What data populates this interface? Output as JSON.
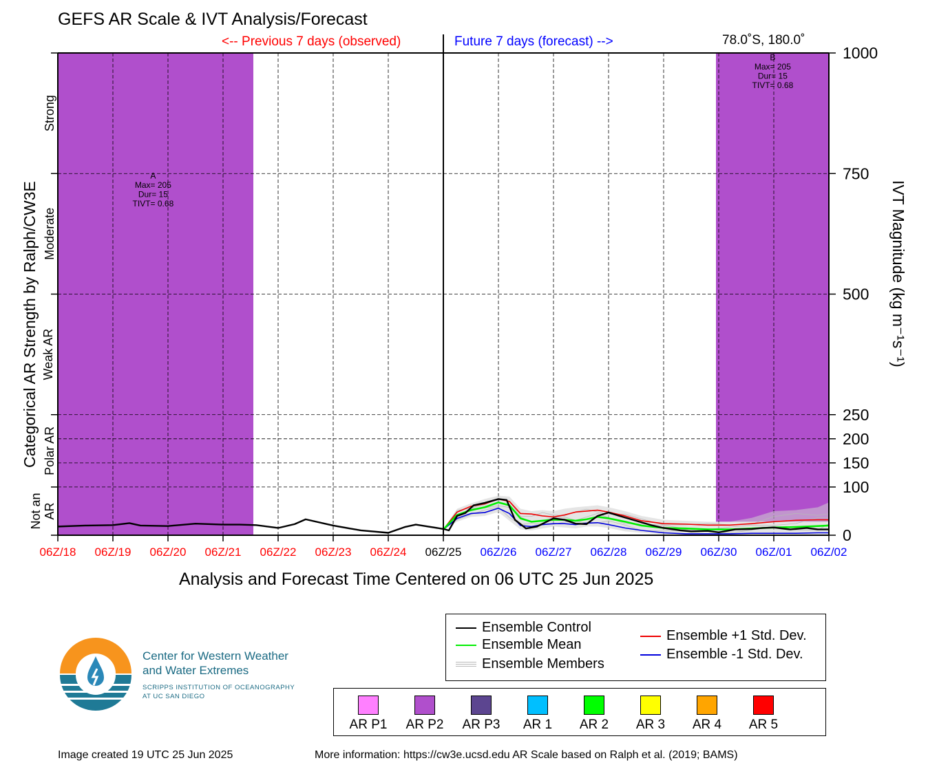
{
  "header": {
    "title": "GEFS AR Scale & IVT Analysis/Forecast",
    "previous_label": "<-- Previous 7 days (observed)",
    "future_label": "Future 7 days (forecast) -->",
    "location": "78.0˚S, 180.0˚"
  },
  "colors": {
    "observed_text": "#ff0000",
    "forecast_text": "#0000ff",
    "ar_p2_shading": "#b04fcc",
    "control": "#000000",
    "mean": "#00ee00",
    "plus_std": "#ee0000",
    "minus_std": "#0000dd",
    "members": "#b8b8b8"
  },
  "chart_data": {
    "type": "line",
    "xlabel": "Analysis and Forecast Time Centered on 06 UTC 25 Jun 2025",
    "ylabel_left": "Categorical AR Strength by Ralph/CW3E",
    "ylabel_right": "IVT Magnitude (kg m⁻¹s⁻¹)",
    "x_ticks": [
      "06Z/18",
      "06Z/19",
      "06Z/20",
      "06Z/21",
      "06Z/22",
      "06Z/23",
      "06Z/24",
      "06Z/25",
      "06Z/26",
      "06Z/27",
      "06Z/28",
      "06Z/29",
      "06Z/30",
      "06Z/01",
      "06Z/02"
    ],
    "x_tick_colors": [
      "#ff0000",
      "#ff0000",
      "#ff0000",
      "#ff0000",
      "#ff0000",
      "#ff0000",
      "#ff0000",
      "#000000",
      "#0000ff",
      "#0000ff",
      "#0000ff",
      "#0000ff",
      "#0000ff",
      "#0000ff",
      "#0000ff"
    ],
    "xlim_days": [
      0,
      14
    ],
    "y_ticks": [
      0,
      100,
      150,
      200,
      250,
      500,
      750,
      1000
    ],
    "ylim": [
      0,
      1000
    ],
    "categories_left": [
      {
        "label": "Not an AR",
        "range": [
          0,
          100
        ]
      },
      {
        "label": "Polar AR",
        "range": [
          100,
          250
        ]
      },
      {
        "label": "Weak AR",
        "range": [
          250,
          500
        ]
      },
      {
        "label": "Moderate",
        "range": [
          500,
          750
        ]
      },
      {
        "label": "Strong",
        "range": [
          750,
          1000
        ]
      }
    ],
    "ar_events": [
      {
        "label": "A",
        "max": "Max= 205",
        "dur": "Dur= 15",
        "tivt": "TIVT= 0.68",
        "x_start": 0.0,
        "x_end": 3.55,
        "label_x": 1.73,
        "label_y": 740
      },
      {
        "label": "B",
        "max": "Max= 205",
        "dur": "Dur= 15",
        "tivt": "TIVT= 0.68",
        "x_start": 11.95,
        "x_end": 14.0,
        "label_x": 12.98,
        "label_y": 985,
        "y_bottom": 28
      }
    ],
    "grid": true,
    "series": [
      {
        "name": "Ensemble Control",
        "x": [
          0,
          0.5,
          1,
          1.3,
          1.5,
          2,
          2.5,
          3,
          3.3,
          3.6,
          4,
          4.3,
          4.5,
          5,
          5.5,
          6,
          6.3,
          6.5,
          7,
          7.1,
          7.25,
          7.4,
          7.55,
          7.75,
          8,
          8.15,
          8.3,
          8.5,
          8.7,
          9,
          9.2,
          9.4,
          9.6,
          9.8,
          10,
          10.2,
          10.5,
          10.8,
          11,
          11.3,
          11.5,
          11.8,
          12,
          12.3,
          12.6,
          12.8,
          13,
          13.3,
          13.6,
          13.8,
          14
        ],
        "values": [
          18,
          20,
          21,
          25,
          20,
          19,
          24,
          22,
          22,
          21,
          15,
          23,
          33,
          20,
          10,
          5,
          17,
          22,
          13,
          10,
          40,
          46,
          62,
          67,
          75,
          73,
          32,
          14,
          18,
          35,
          32,
          24,
          23,
          40,
          47,
          40,
          30,
          20,
          15,
          10,
          8,
          9,
          6,
          12,
          13,
          15,
          16,
          12,
          15,
          12,
          12
        ]
      },
      {
        "name": "Ensemble Mean",
        "x": [
          7,
          7.25,
          7.5,
          7.75,
          8,
          8.2,
          8.4,
          8.6,
          8.8,
          9,
          9.2,
          9.4,
          9.6,
          9.8,
          10,
          10.3,
          10.6,
          11,
          11.4,
          11.8,
          12.2,
          12.6,
          13,
          13.4,
          13.8,
          14
        ],
        "values": [
          12,
          42,
          52,
          58,
          68,
          62,
          35,
          28,
          30,
          32,
          32,
          30,
          33,
          38,
          35,
          28,
          20,
          15,
          14,
          12,
          12,
          14,
          16,
          17,
          19,
          20
        ]
      },
      {
        "name": "Ensemble +1 Std. Dev.",
        "x": [
          7,
          7.25,
          7.5,
          7.75,
          8,
          8.2,
          8.4,
          8.6,
          8.8,
          9,
          9.2,
          9.4,
          9.6,
          9.8,
          10,
          10.3,
          10.6,
          11,
          11.4,
          11.8,
          12.2,
          12.6,
          13,
          13.4,
          13.8,
          14
        ],
        "values": [
          12,
          48,
          60,
          65,
          75,
          70,
          45,
          44,
          40,
          38,
          42,
          48,
          50,
          52,
          48,
          40,
          30,
          24,
          23,
          21,
          21,
          24,
          28,
          31,
          32,
          32
        ]
      },
      {
        "name": "Ensemble -1 Std. Dev.",
        "x": [
          7,
          7.25,
          7.5,
          7.75,
          8,
          8.2,
          8.4,
          8.6,
          8.8,
          9,
          9.2,
          9.4,
          9.6,
          9.8,
          10,
          10.3,
          10.6,
          11,
          11.4,
          11.8,
          12.2,
          12.6,
          13,
          13.4,
          13.8,
          14
        ],
        "values": [
          12,
          35,
          45,
          47,
          56,
          45,
          20,
          18,
          22,
          24,
          24,
          22,
          25,
          26,
          22,
          15,
          10,
          5,
          3,
          3,
          3,
          4,
          4,
          4,
          5,
          5
        ]
      }
    ],
    "members_band_upper": {
      "x": [
        7,
        7.25,
        7.5,
        7.75,
        8,
        8.2,
        8.4,
        8.6,
        8.8,
        9,
        9.2,
        9.4,
        9.6,
        9.8,
        10,
        10.3,
        10.6,
        11,
        11.4,
        11.8,
        12.2,
        12.6,
        13,
        13.4,
        13.8,
        14
      ],
      "values": [
        12,
        55,
        66,
        75,
        82,
        80,
        55,
        50,
        52,
        50,
        55,
        58,
        60,
        62,
        58,
        50,
        40,
        32,
        30,
        28,
        28,
        36,
        50,
        52,
        58,
        68
      ]
    },
    "members_band_lower": {
      "x": [
        7,
        7.25,
        7.5,
        7.75,
        8,
        8.2,
        8.4,
        8.6,
        8.8,
        9,
        9.2,
        9.4,
        9.6,
        9.8,
        10,
        10.3,
        10.6,
        11,
        11.4,
        11.8,
        12.2,
        12.6,
        13,
        13.4,
        13.8,
        14
      ],
      "values": [
        12,
        28,
        38,
        40,
        48,
        30,
        12,
        10,
        14,
        18,
        16,
        14,
        18,
        18,
        15,
        8,
        5,
        2,
        1,
        1,
        1,
        1,
        1,
        1,
        2,
        2
      ]
    },
    "legend": {
      "control": "Ensemble Control",
      "mean": "Ensemble Mean",
      "members": "Ensemble Members",
      "plus_std": "Ensemble +1 Std. Dev.",
      "minus_std": "Ensemble -1 Std. Dev."
    },
    "ar_categories": [
      {
        "label": "AR P1",
        "color": "#ff80ff"
      },
      {
        "label": "AR P2",
        "color": "#b04fcc"
      },
      {
        "label": "AR P3",
        "color": "#5c4590"
      },
      {
        "label": "AR 1",
        "color": "#00bfff"
      },
      {
        "label": "AR 2",
        "color": "#00ff00"
      },
      {
        "label": "AR 3",
        "color": "#ffff00"
      },
      {
        "label": "AR 4",
        "color": "#ffa500"
      },
      {
        "label": "AR 5",
        "color": "#ff0000"
      }
    ]
  },
  "branding": {
    "org_line1": "Center for Western Weather",
    "org_line2": "and Water Extremes",
    "org_sub1": "SCRIPPS INSTITUTION OF OCEANOGRAPHY",
    "org_sub2": "AT UC SAN DIEGO"
  },
  "footer": {
    "created": "Image created 19 UTC 25 Jun 2025",
    "info": "More information: https://cw3e.ucsd.edu AR Scale based on Ralph et al. (2019; BAMS)"
  }
}
